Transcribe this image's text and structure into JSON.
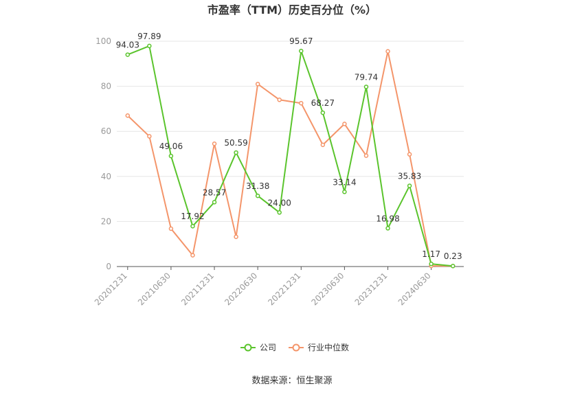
{
  "chart_data": {
    "type": "line",
    "title": "市盈率（TTM）历史百分位（%）",
    "source": "数据来源：恒生聚源",
    "x": [
      "20201231",
      "",
      "20210630",
      "",
      "20211231",
      "",
      "20220630",
      "",
      "20221231",
      "",
      "20230630",
      "",
      "20231231",
      "",
      "20240630",
      ""
    ],
    "tick_labels": [
      "20201231",
      "20210630",
      "20211231",
      "20220630",
      "20221231",
      "20230630",
      "20231231",
      "20240630"
    ],
    "ylim": [
      0,
      100
    ],
    "yticks": [
      0,
      20,
      40,
      60,
      80,
      100
    ],
    "grid": true,
    "legend_position": "bottom",
    "series": [
      {
        "name": "公司",
        "color": "#5ac42c",
        "values": [
          94.03,
          97.89,
          49.06,
          17.92,
          28.57,
          50.59,
          31.38,
          24.0,
          95.67,
          68.27,
          33.14,
          79.74,
          16.98,
          35.83,
          1.17,
          0.23
        ],
        "labels": [
          "94.03",
          "97.89",
          "49.06",
          "17.92",
          "28.57",
          "50.59",
          "31.38",
          "24.00",
          "95.67",
          "68.27",
          "33.14",
          "79.74",
          "16.98",
          "35.83",
          "1.17",
          "0.23"
        ]
      },
      {
        "name": "行业中位数",
        "color": "#f4956a",
        "values": [
          67.0,
          57.8,
          16.8,
          5.0,
          54.5,
          13.2,
          81.0,
          74.0,
          72.5,
          54.0,
          63.3,
          49.2,
          95.5,
          49.8,
          0.3,
          0.23
        ]
      }
    ]
  }
}
